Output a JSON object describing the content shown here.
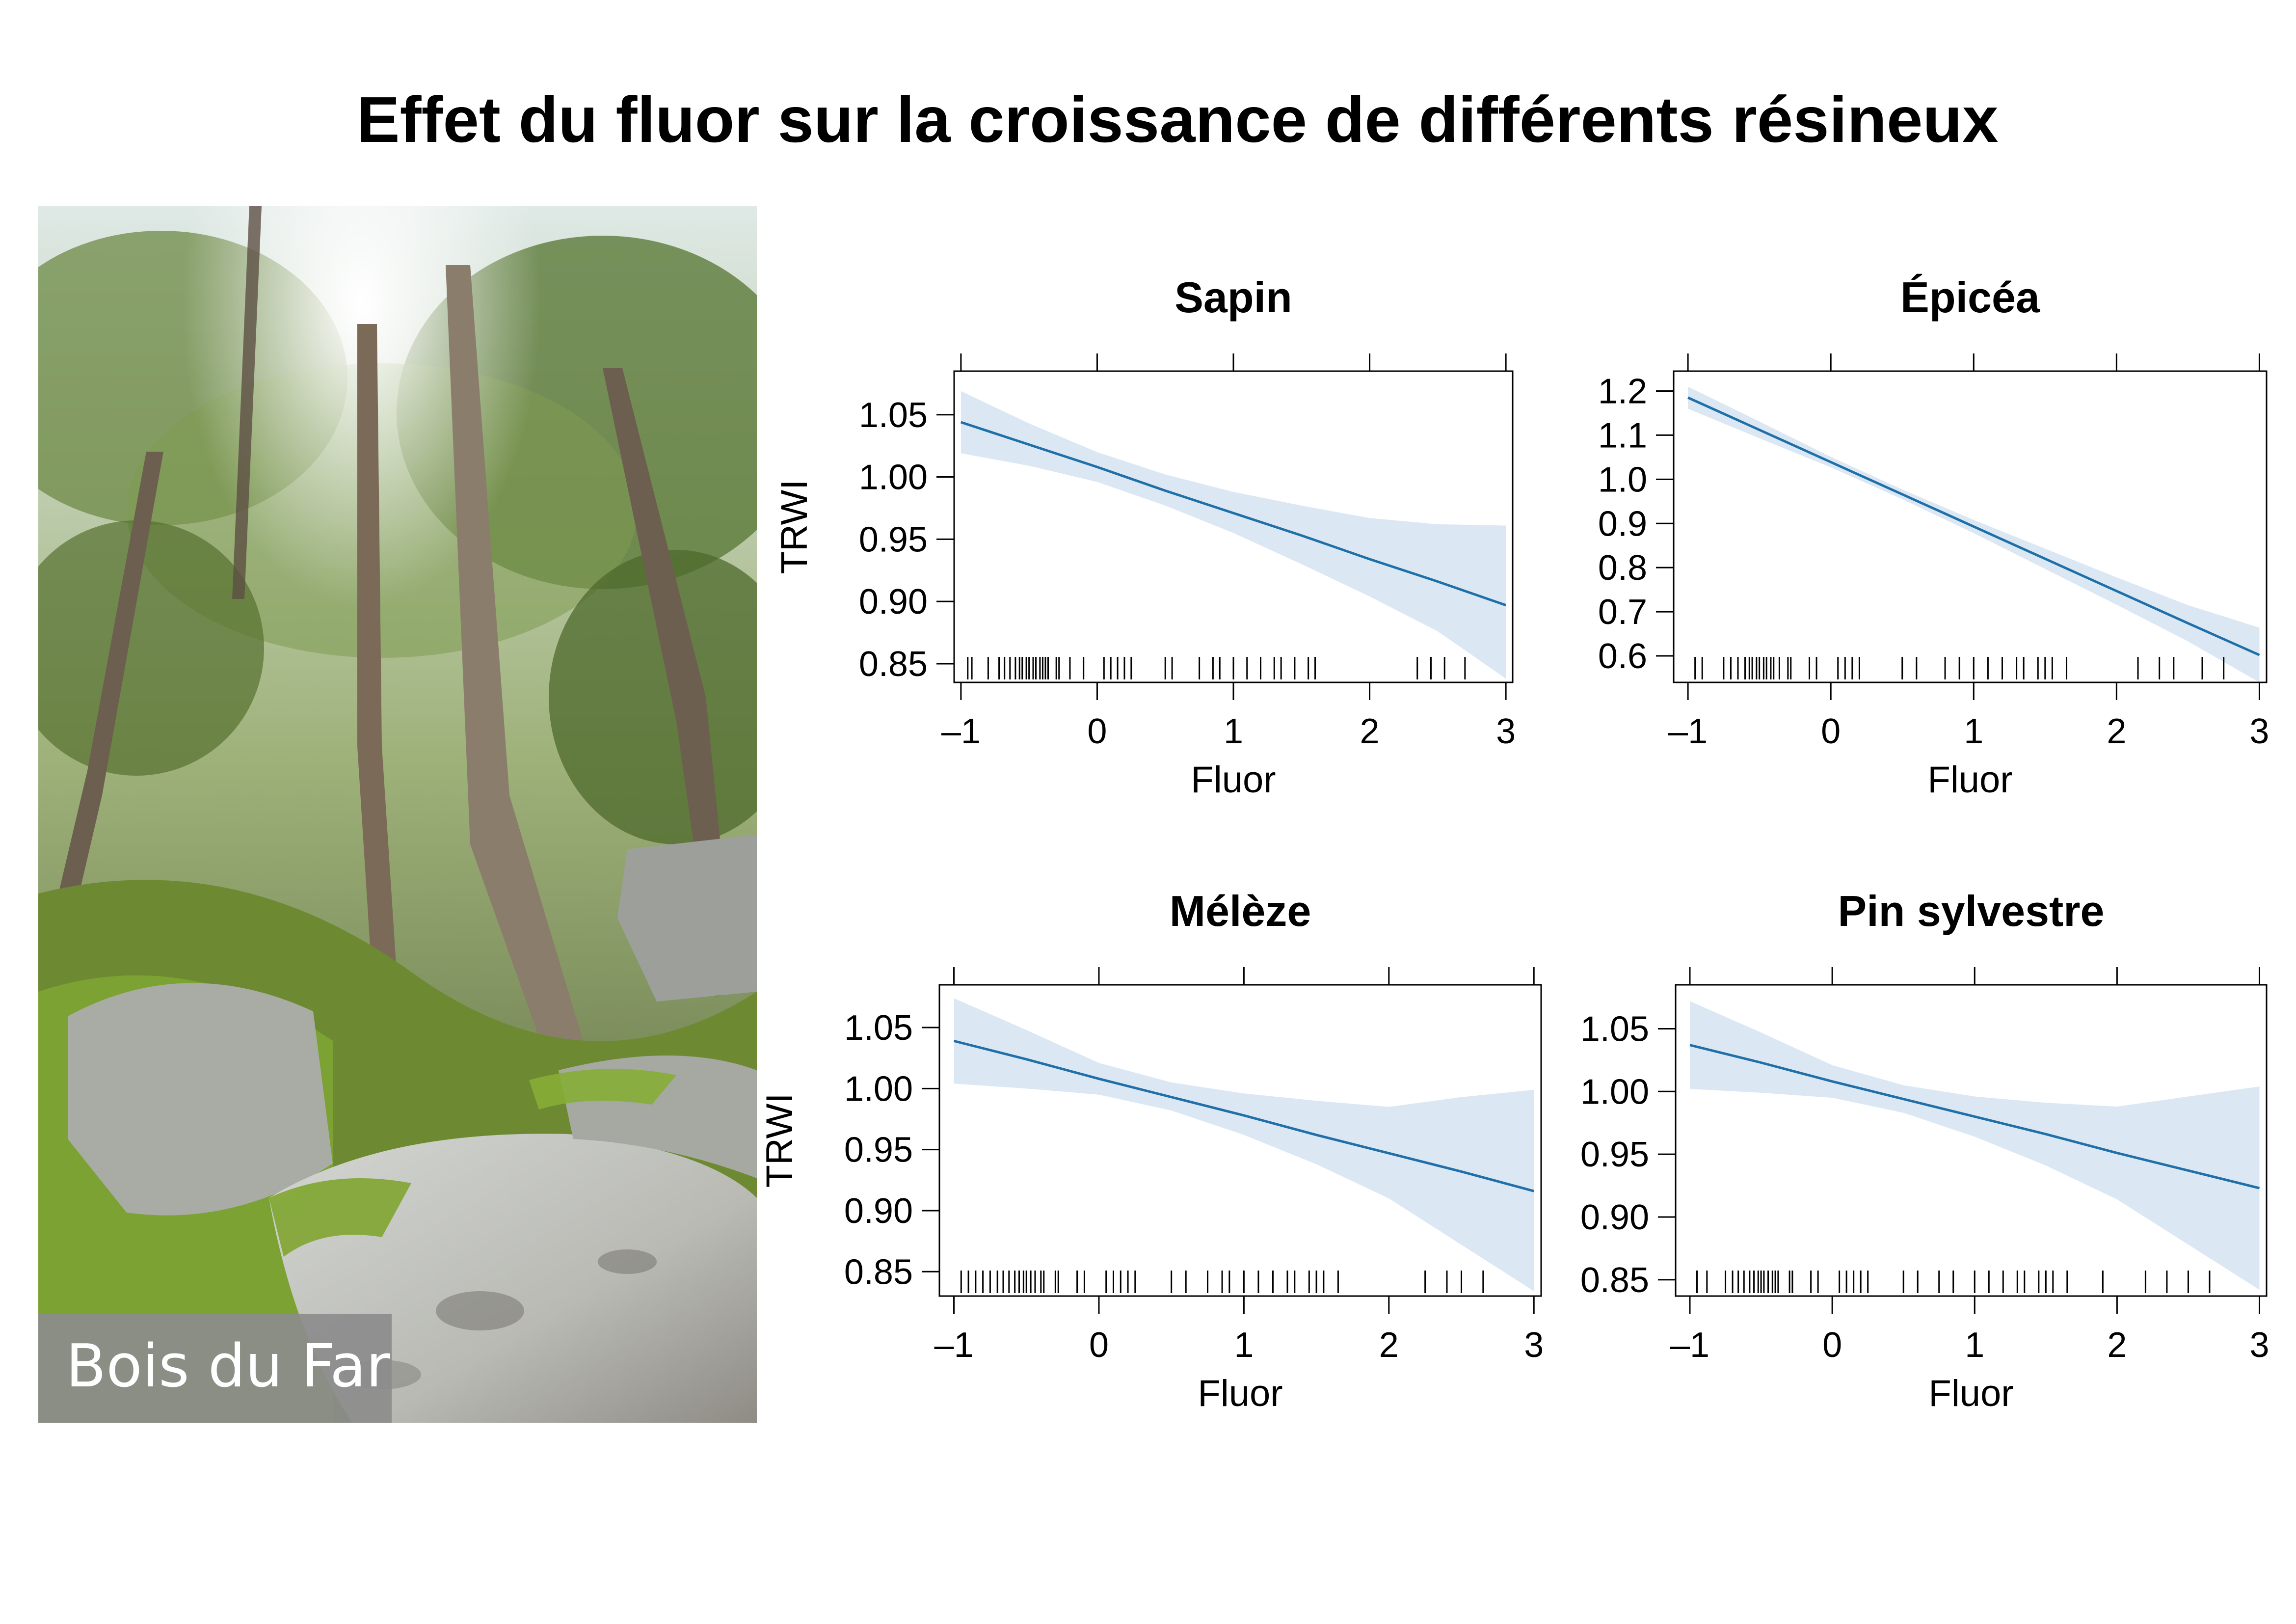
{
  "title": "Effet du fluor sur la croissance de différents résineux",
  "photo": {
    "caption": "Bois du Far",
    "palette": {
      "canopy": "#7f9a52",
      "moss": "#6f9a2a",
      "rock": "#c8c9c4",
      "trunk": "#8b7d6b",
      "sky": "#e8f0f2"
    }
  },
  "colors": {
    "line": "#1f6fa8",
    "band": "#dbe8f4",
    "rug": "#000000",
    "frame": "#000000"
  },
  "chart_data": [
    {
      "type": "line",
      "title": "Sapin",
      "xlabel": "Fluor",
      "ylabel": "TRWI",
      "xlim": [
        -1.05,
        3.05
      ],
      "ylim": [
        0.835,
        1.085
      ],
      "xticks": [
        {
          "v": -1,
          "label": "–1"
        },
        {
          "v": 0,
          "label": "0"
        },
        {
          "v": 1,
          "label": "1"
        },
        {
          "v": 2,
          "label": "2"
        },
        {
          "v": 3,
          "label": "3"
        }
      ],
      "yticks": [
        {
          "v": 0.85,
          "label": "0.85"
        },
        {
          "v": 0.9,
          "label": "0.90"
        },
        {
          "v": 0.95,
          "label": "0.95"
        },
        {
          "v": 1.0,
          "label": "1.00"
        },
        {
          "v": 1.05,
          "label": "1.05"
        }
      ],
      "series": [
        {
          "x": [
            -1,
            -0.5,
            0,
            0.5,
            1,
            1.5,
            2,
            2.5,
            3
          ],
          "fit": [
            1.044,
            1.026,
            1.008,
            0.989,
            0.971,
            0.953,
            0.934,
            0.916,
            0.897
          ],
          "lower": [
            1.019,
            1.009,
            0.996,
            0.977,
            0.955,
            0.93,
            0.904,
            0.876,
            0.838
          ],
          "upper": [
            1.069,
            1.043,
            1.02,
            1.002,
            0.988,
            0.977,
            0.967,
            0.962,
            0.961
          ]
        }
      ],
      "rug": [
        -0.95,
        -0.92,
        -0.8,
        -0.72,
        -0.68,
        -0.64,
        -0.6,
        -0.57,
        -0.55,
        -0.52,
        -0.5,
        -0.47,
        -0.45,
        -0.42,
        -0.4,
        -0.38,
        -0.36,
        -0.3,
        -0.28,
        -0.2,
        -0.1,
        0.05,
        0.1,
        0.15,
        0.2,
        0.25,
        0.5,
        0.55,
        0.75,
        0.85,
        0.9,
        1.0,
        1.1,
        1.2,
        1.3,
        1.35,
        1.45,
        1.55,
        1.6,
        2.35,
        2.45,
        2.55,
        2.7
      ]
    },
    {
      "type": "line",
      "title": "Épicéa",
      "xlabel": "Fluor",
      "ylabel": "",
      "xlim": [
        -1.1,
        3.05
      ],
      "ylim": [
        0.54,
        1.245
      ],
      "xticks": [
        {
          "v": -1,
          "label": "–1"
        },
        {
          "v": 0,
          "label": "0"
        },
        {
          "v": 1,
          "label": "1"
        },
        {
          "v": 2,
          "label": "2"
        },
        {
          "v": 3,
          "label": "3"
        }
      ],
      "yticks": [
        {
          "v": 0.6,
          "label": "0.6"
        },
        {
          "v": 0.7,
          "label": "0.7"
        },
        {
          "v": 0.8,
          "label": "0.8"
        },
        {
          "v": 0.9,
          "label": "0.9"
        },
        {
          "v": 1.0,
          "label": "1.0"
        },
        {
          "v": 1.1,
          "label": "1.1"
        },
        {
          "v": 1.2,
          "label": "1.2"
        }
      ],
      "series": [
        {
          "x": [
            -1,
            -0.5,
            0,
            0.5,
            1,
            1.5,
            2,
            2.5,
            3
          ],
          "fit": [
            1.185,
            1.112,
            1.039,
            0.966,
            0.893,
            0.82,
            0.747,
            0.674,
            0.602
          ],
          "lower": [
            1.16,
            1.093,
            1.027,
            0.955,
            0.878,
            0.797,
            0.716,
            0.633,
            0.54
          ],
          "upper": [
            1.21,
            1.131,
            1.051,
            0.977,
            0.908,
            0.843,
            0.778,
            0.715,
            0.664
          ]
        }
      ],
      "rug": [
        -0.95,
        -0.9,
        -0.75,
        -0.7,
        -0.65,
        -0.6,
        -0.57,
        -0.55,
        -0.52,
        -0.5,
        -0.47,
        -0.45,
        -0.42,
        -0.4,
        -0.36,
        -0.3,
        -0.28,
        -0.15,
        -0.1,
        0.05,
        0.1,
        0.15,
        0.2,
        0.5,
        0.6,
        0.8,
        0.9,
        1.0,
        1.1,
        1.2,
        1.3,
        1.35,
        1.45,
        1.5,
        1.55,
        1.65,
        2.15,
        2.3,
        2.4,
        2.6,
        2.75
      ]
    },
    {
      "type": "line",
      "title": "Mélèze",
      "xlabel": "Fluor",
      "ylabel": "TRWI",
      "xlim": [
        -1.1,
        3.05
      ],
      "ylim": [
        0.83,
        1.085
      ],
      "xticks": [
        {
          "v": -1,
          "label": "–1"
        },
        {
          "v": 0,
          "label": "0"
        },
        {
          "v": 1,
          "label": "1"
        },
        {
          "v": 2,
          "label": "2"
        },
        {
          "v": 3,
          "label": "3"
        }
      ],
      "yticks": [
        {
          "v": 0.85,
          "label": "0.85"
        },
        {
          "v": 0.9,
          "label": "0.90"
        },
        {
          "v": 0.95,
          "label": "0.95"
        },
        {
          "v": 1.0,
          "label": "1.00"
        },
        {
          "v": 1.05,
          "label": "1.05"
        }
      ],
      "series": [
        {
          "x": [
            -1,
            -0.5,
            0,
            0.5,
            1,
            1.5,
            2,
            2.5,
            3
          ],
          "fit": [
            1.039,
            1.024,
            1.008,
            0.993,
            0.978,
            0.962,
            0.947,
            0.932,
            0.916
          ],
          "lower": [
            1.004,
            1.0,
            0.995,
            0.982,
            0.962,
            0.938,
            0.91,
            0.872,
            0.834
          ],
          "upper": [
            1.074,
            1.048,
            1.021,
            1.005,
            0.996,
            0.99,
            0.985,
            0.993,
            0.999
          ]
        }
      ],
      "rug": [
        -0.95,
        -0.9,
        -0.85,
        -0.8,
        -0.75,
        -0.7,
        -0.66,
        -0.62,
        -0.58,
        -0.55,
        -0.52,
        -0.5,
        -0.47,
        -0.44,
        -0.4,
        -0.38,
        -0.3,
        -0.28,
        -0.15,
        -0.1,
        0.05,
        0.1,
        0.15,
        0.2,
        0.25,
        0.5,
        0.6,
        0.75,
        0.85,
        0.9,
        1.0,
        1.1,
        1.2,
        1.3,
        1.35,
        1.45,
        1.5,
        1.55,
        1.65,
        2.25,
        2.4,
        2.5,
        2.65
      ]
    },
    {
      "type": "line",
      "title": "Pin sylvestre",
      "xlabel": "Fluor",
      "ylabel": "",
      "xlim": [
        -1.1,
        3.05
      ],
      "ylim": [
        0.837,
        1.085
      ],
      "xticks": [
        {
          "v": -1,
          "label": "–1"
        },
        {
          "v": 0,
          "label": "0"
        },
        {
          "v": 1,
          "label": "1"
        },
        {
          "v": 2,
          "label": "2"
        },
        {
          "v": 3,
          "label": "3"
        }
      ],
      "yticks": [
        {
          "v": 0.85,
          "label": "0.85"
        },
        {
          "v": 0.9,
          "label": "0.90"
        },
        {
          "v": 0.95,
          "label": "0.95"
        },
        {
          "v": 1.0,
          "label": "1.00"
        },
        {
          "v": 1.05,
          "label": "1.05"
        }
      ],
      "series": [
        {
          "x": [
            -1,
            -0.5,
            0,
            0.5,
            1,
            1.5,
            2,
            2.5,
            3
          ],
          "fit": [
            1.037,
            1.023,
            1.008,
            0.994,
            0.98,
            0.966,
            0.951,
            0.937,
            0.923
          ],
          "lower": [
            1.002,
            0.999,
            0.995,
            0.983,
            0.964,
            0.941,
            0.914,
            0.878,
            0.842
          ],
          "upper": [
            1.072,
            1.047,
            1.021,
            1.005,
            0.996,
            0.991,
            0.988,
            0.996,
            1.004
          ]
        }
      ],
      "rug": [
        -0.95,
        -0.88,
        -0.75,
        -0.7,
        -0.66,
        -0.62,
        -0.58,
        -0.55,
        -0.52,
        -0.5,
        -0.48,
        -0.45,
        -0.42,
        -0.4,
        -0.38,
        -0.3,
        -0.28,
        -0.15,
        -0.1,
        0.05,
        0.1,
        0.15,
        0.2,
        0.25,
        0.5,
        0.6,
        0.75,
        0.85,
        1.0,
        1.1,
        1.2,
        1.3,
        1.35,
        1.45,
        1.5,
        1.55,
        1.65,
        1.9,
        2.2,
        2.35,
        2.5,
        2.65
      ]
    }
  ]
}
